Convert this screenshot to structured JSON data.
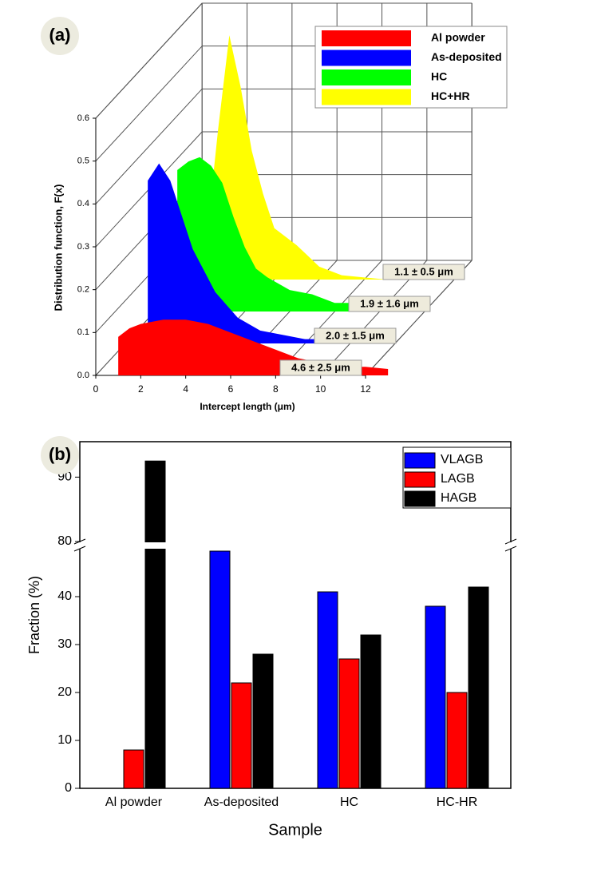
{
  "chart_data": [
    {
      "type": "waterfall",
      "panel_label": "(a)",
      "x_label": "Intercept length (μm)",
      "y_label": "Distribution function, F(x)",
      "x": [
        1,
        1.5,
        2,
        2.5,
        3,
        3.5,
        4,
        4.5,
        5,
        6,
        7,
        8,
        9,
        10,
        11,
        12,
        13
      ],
      "series": [
        {
          "name": "Al powder",
          "color": "#ff0000",
          "annotation": "4.6 ± 2.5 μm",
          "values": [
            0.09,
            0.11,
            0.12,
            0.125,
            0.13,
            0.13,
            0.13,
            0.125,
            0.12,
            0.1,
            0.08,
            0.06,
            0.04,
            0.03,
            0.02,
            0.02,
            0.015
          ]
        },
        {
          "name": "As-deposited",
          "color": "#0000ff",
          "annotation": "2.0 ± 1.5 μm",
          "values": [
            0.38,
            0.42,
            0.38,
            0.3,
            0.22,
            0.17,
            0.12,
            0.09,
            0.06,
            0.03,
            0.02,
            0.01,
            0.01,
            0.005,
            0,
            0,
            0
          ]
        },
        {
          "name": "HC",
          "color": "#00ff00",
          "annotation": "1.9 ± 1.6 μm",
          "values": [
            0.33,
            0.35,
            0.36,
            0.34,
            0.3,
            0.22,
            0.15,
            0.1,
            0.08,
            0.05,
            0.04,
            0.02,
            0.02,
            0.01,
            0.01,
            0,
            0
          ]
        },
        {
          "name": "HC+HR",
          "color": "#ffff00",
          "annotation": "1.1 ± 0.5 μm",
          "values": [
            0.1,
            0.35,
            0.57,
            0.45,
            0.3,
            0.2,
            0.12,
            0.1,
            0.08,
            0.03,
            0.01,
            0.005,
            0,
            0,
            0,
            0,
            0
          ]
        }
      ],
      "xlim": [
        0,
        12
      ],
      "xticks": [
        0,
        2,
        4,
        6,
        8,
        10,
        12
      ],
      "ylim": [
        0,
        0.6
      ],
      "yticks": [
        {
          "value": 0,
          "label": "0.0"
        },
        0.1,
        0.2,
        0.3,
        0.4,
        0.5,
        0.6
      ],
      "grid": true,
      "legend": "upper right"
    },
    {
      "type": "bar",
      "panel_label": "(b)",
      "x_label": "Sample",
      "y_label": "Fraction (%)",
      "categories": [
        "Al powder",
        "As-deposited",
        "HC",
        "HC-HR"
      ],
      "series": [
        {
          "name": "VLAGB",
          "color": "#0000ff",
          "values": [
            null,
            49.5,
            41,
            38
          ]
        },
        {
          "name": "LAGB",
          "color": "#ff0000",
          "values": [
            8,
            22,
            27,
            20
          ]
        },
        {
          "name": "HAGB",
          "color": "#000000",
          "values": [
            92.5,
            28,
            32,
            42
          ]
        }
      ],
      "ylim": [
        0,
        95.5
      ],
      "ybreak": [
        50,
        80
      ],
      "yticks": [
        0,
        10,
        20,
        30,
        40,
        80,
        90
      ],
      "legend": "upper right"
    }
  ]
}
